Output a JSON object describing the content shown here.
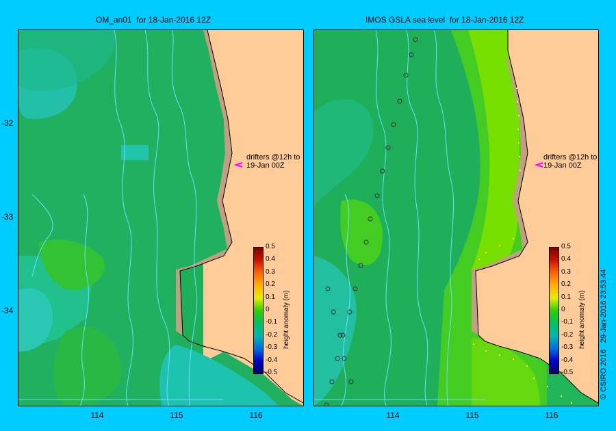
{
  "left_panel": {
    "title": "OM_an01  for 18-Jan-2016 12Z",
    "drifter_note_line1": "drifters @12h to",
    "drifter_note_line2": "19-Jan 00Z",
    "colorbar_title": "height anomaly (m)"
  },
  "right_panel": {
    "title": "IMOS GSLA sea level  for 18-Jan-2016 12Z",
    "drifter_note_line1": "drifters @12h to",
    "drifter_note_line2": "19-Jan 00Z",
    "colorbar_title": "height anomaly (m)"
  },
  "y_axis_ticks": [
    "-32",
    "-33",
    "-34"
  ],
  "x_axis_ticks": [
    "114",
    "115",
    "116"
  ],
  "colorbar_ticks": [
    "0.5",
    "0.4",
    "0.3",
    "0.2",
    "0.1",
    "0",
    "-0.1",
    "-0.2",
    "-0.3",
    "-0.4",
    "-0.5"
  ],
  "credit": "© CSIRO 2016   29-Jan-2016 23:53:44",
  "colors": {
    "background": "#00ccff",
    "land": "#ffcc99",
    "shelf": "#c0a080",
    "anomaly_zero": "#22bb44",
    "anomaly_neg": "#00b090",
    "anomaly_pos": "#66dd00",
    "bathymetry_contours": "#66e0ff",
    "drifter_arrow": "#ff00ff"
  }
}
